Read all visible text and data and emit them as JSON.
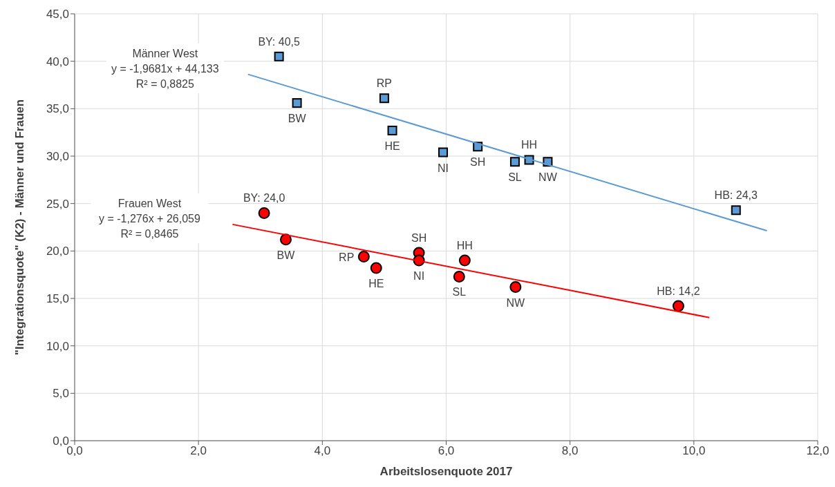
{
  "chart_data": {
    "type": "scatter",
    "xlabel": "Arbeitslosenquote 2017",
    "ylabel": "\"Integrationsquote\" (K2) - Männer und Frauen",
    "xlim": [
      0,
      12
    ],
    "ylim": [
      0,
      45
    ],
    "xticks": [
      {
        "value": 0,
        "label": "0,0"
      },
      {
        "value": 2,
        "label": "2,0"
      },
      {
        "value": 4,
        "label": "4,0"
      },
      {
        "value": 6,
        "label": "6,0"
      },
      {
        "value": 8,
        "label": "8,0"
      },
      {
        "value": 10,
        "label": "10,0"
      },
      {
        "value": 12,
        "label": "12,0"
      }
    ],
    "yticks": [
      {
        "value": 0,
        "label": "0,0"
      },
      {
        "value": 5,
        "label": "5,0"
      },
      {
        "value": 10,
        "label": "10,0"
      },
      {
        "value": 15,
        "label": "15,0"
      },
      {
        "value": 20,
        "label": "20,0"
      },
      {
        "value": 25,
        "label": "25,0"
      },
      {
        "value": 30,
        "label": "30,0"
      },
      {
        "value": 35,
        "label": "35,0"
      },
      {
        "value": 40,
        "label": "40,0"
      },
      {
        "value": 45,
        "label": "45,0"
      }
    ],
    "grid": true,
    "series": [
      {
        "color": "#5b9bd5",
        "marker": "square",
        "x": [
          3.3,
          3.59,
          5.0,
          5.13,
          5.95,
          6.51,
          7.11,
          7.34,
          7.64,
          10.68
        ],
        "values": [
          40.5,
          35.6,
          36.1,
          32.7,
          30.4,
          31.0,
          29.4,
          29.6,
          29.4,
          24.3
        ]
      },
      {
        "color": "#ff0000",
        "marker": "circle",
        "x": [
          3.06,
          3.41,
          4.67,
          4.87,
          5.56,
          5.56,
          6.21,
          6.3,
          7.12,
          9.75
        ],
        "values": [
          24.0,
          21.2,
          19.4,
          18.2,
          19.8,
          19.0,
          17.3,
          19.0,
          16.2,
          14.2
        ]
      },
      {
        "type": "line",
        "color": "#5b9bd5",
        "marker": "none",
        "x": [
          2.8,
          11.18
        ],
        "values": [
          38.62,
          22.13
        ]
      },
      {
        "type": "line",
        "color": "#ff0000",
        "marker": "none",
        "x": [
          2.55,
          10.25
        ],
        "values": [
          22.8,
          12.98
        ]
      }
    ],
    "annotations": [
      "Männer West\ny = -1,9681x + 44,133\nR² = 0,8825",
      "Frauen West\ny = -1,276x + 26,059\nR² = 0,8465",
      {
        "text": "BY: 40,5",
        "x": 3.3,
        "y": 40.5
      },
      {
        "text": "BW",
        "x": 3.59,
        "y": 35.6
      },
      {
        "text": "RP",
        "x": 5.0,
        "y": 36.1
      },
      {
        "text": "HE",
        "x": 5.13,
        "y": 32.7
      },
      {
        "text": "NI",
        "x": 5.95,
        "y": 30.4
      },
      {
        "text": "SH",
        "x": 6.51,
        "y": 31.0
      },
      {
        "text": "SL",
        "x": 7.11,
        "y": 29.4
      },
      {
        "text": "HH",
        "x": 7.34,
        "y": 29.6
      },
      {
        "text": "NW",
        "x": 7.64,
        "y": 29.4
      },
      {
        "text": "HB: 24,3",
        "x": 10.68,
        "y": 24.3
      },
      {
        "text": "BY:  24,0",
        "x": 3.06,
        "y": 24.0
      },
      {
        "text": "BW",
        "x": 3.41,
        "y": 21.2
      },
      {
        "text": "RP",
        "x": 4.67,
        "y": 19.4
      },
      {
        "text": "HE",
        "x": 4.87,
        "y": 18.2
      },
      {
        "text": "SH",
        "x": 5.56,
        "y": 19.8
      },
      {
        "text": "NI",
        "x": 5.56,
        "y": 19.0
      },
      {
        "text": "SL",
        "x": 6.21,
        "y": 17.3
      },
      {
        "text": "HH",
        "x": 6.3,
        "y": 19.0
      },
      {
        "text": "NW",
        "x": 7.12,
        "y": 16.2
      },
      {
        "text": "HB: 14,2",
        "x": 9.75,
        "y": 14.2
      }
    ]
  }
}
